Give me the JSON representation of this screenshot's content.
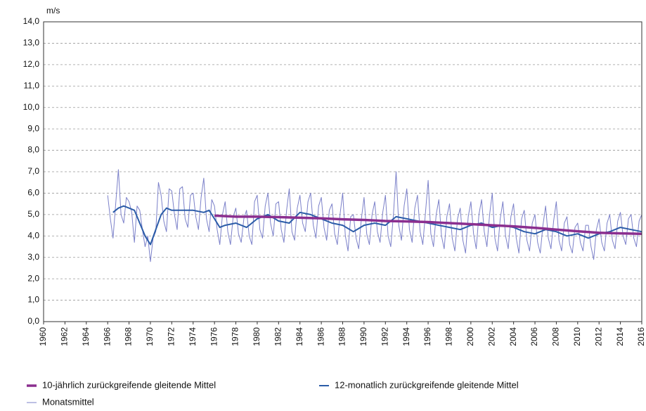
{
  "chart_data": {
    "type": "line",
    "y_unit": "m/s",
    "xlim": [
      1960,
      2016
    ],
    "xticks": [
      1960,
      1962,
      1964,
      1966,
      1968,
      1970,
      1972,
      1974,
      1976,
      1978,
      1980,
      1982,
      1984,
      1986,
      1988,
      1990,
      1992,
      1994,
      1996,
      1998,
      2000,
      2002,
      2004,
      2006,
      2008,
      2010,
      2012,
      2014,
      2016
    ],
    "ylim": [
      0,
      14
    ],
    "yticks": [
      {
        "value": 0,
        "label": "0,0"
      },
      {
        "value": 1,
        "label": "1,0"
      },
      {
        "value": 2,
        "label": "2,0"
      },
      {
        "value": 3,
        "label": "3,0"
      },
      {
        "value": 4,
        "label": "4,0"
      },
      {
        "value": 5,
        "label": "5,0"
      },
      {
        "value": 6,
        "label": "6,0"
      },
      {
        "value": 7,
        "label": "7,0"
      },
      {
        "value": 8,
        "label": "8,0"
      },
      {
        "value": 9,
        "label": "9,0"
      },
      {
        "value": 10,
        "label": "10,0"
      },
      {
        "value": 11,
        "label": "11,0"
      },
      {
        "value": 12,
        "label": "12,0"
      },
      {
        "value": 13,
        "label": "13,0"
      },
      {
        "value": 14,
        "label": "14,0"
      }
    ],
    "grid": true,
    "series": [
      {
        "name": "10-jährlich zurückgreifende gleitende Mittel",
        "color": "#8b2f8f",
        "width": 3.5,
        "x": [
          1976,
          1978,
          1980,
          1982,
          1984,
          1986,
          1988,
          1990,
          1992,
          1994,
          1996,
          1998,
          2000,
          2002,
          2004,
          2006,
          2008,
          2010,
          2012,
          2014,
          2016
        ],
        "values": [
          4.95,
          4.9,
          4.9,
          4.88,
          4.85,
          4.82,
          4.78,
          4.75,
          4.7,
          4.68,
          4.65,
          4.6,
          4.55,
          4.5,
          4.45,
          4.38,
          4.3,
          4.22,
          4.15,
          4.12,
          4.1
        ]
      },
      {
        "name": "12-monatlich zurückgreifende gleitende Mittel",
        "color": "#2b5ca8",
        "width": 2,
        "x": [
          1966.5,
          1967,
          1967.5,
          1968,
          1968.5,
          1969,
          1969.5,
          1970,
          1970.5,
          1971,
          1971.5,
          1972,
          1973,
          1974,
          1975,
          1975.5,
          1976,
          1976.5,
          1977,
          1978,
          1979,
          1980,
          1981,
          1982,
          1983,
          1984,
          1985,
          1986,
          1987,
          1988,
          1989,
          1990,
          1991,
          1992,
          1993,
          1994,
          1995,
          1996,
          1997,
          1998,
          1999,
          2000,
          2001,
          2002,
          2003,
          2004,
          2005,
          2006,
          2007,
          2008,
          2009,
          2010,
          2011,
          2012,
          2013,
          2014,
          2015,
          2016
        ],
        "values": [
          5.1,
          5.3,
          5.4,
          5.3,
          5.2,
          4.6,
          4.0,
          3.6,
          4.3,
          5.0,
          5.3,
          5.2,
          5.2,
          5.2,
          5.1,
          5.2,
          4.8,
          4.4,
          4.5,
          4.6,
          4.4,
          4.8,
          5.0,
          4.7,
          4.6,
          5.1,
          5.0,
          4.8,
          4.6,
          4.5,
          4.2,
          4.5,
          4.6,
          4.5,
          4.9,
          4.8,
          4.7,
          4.6,
          4.5,
          4.4,
          4.3,
          4.5,
          4.6,
          4.4,
          4.5,
          4.4,
          4.2,
          4.1,
          4.3,
          4.2,
          4.0,
          4.1,
          3.9,
          4.1,
          4.2,
          4.4,
          4.3,
          4.2
        ]
      },
      {
        "name": "Monatsmittel",
        "color": "#7b80c9",
        "width": 1,
        "x": [
          1966,
          1966.25,
          1966.5,
          1966.75,
          1967,
          1967.25,
          1967.5,
          1967.75,
          1968,
          1968.25,
          1968.5,
          1968.75,
          1969,
          1969.25,
          1969.5,
          1969.75,
          1970,
          1970.25,
          1970.5,
          1970.75,
          1971,
          1971.25,
          1971.5,
          1971.75,
          1972,
          1972.25,
          1972.5,
          1972.75,
          1973,
          1973.25,
          1973.5,
          1973.75,
          1974,
          1974.25,
          1974.5,
          1974.75,
          1975,
          1975.25,
          1975.5,
          1975.75,
          1976,
          1976.25,
          1976.5,
          1976.75,
          1977,
          1977.25,
          1977.5,
          1977.75,
          1978,
          1978.25,
          1978.5,
          1978.75,
          1979,
          1979.25,
          1979.5,
          1979.75,
          1980,
          1980.25,
          1980.5,
          1980.75,
          1981,
          1981.25,
          1981.5,
          1981.75,
          1982,
          1982.25,
          1982.5,
          1982.75,
          1983,
          1983.25,
          1983.5,
          1983.75,
          1984,
          1984.25,
          1984.5,
          1984.75,
          1985,
          1985.25,
          1985.5,
          1985.75,
          1986,
          1986.25,
          1986.5,
          1986.75,
          1987,
          1987.25,
          1987.5,
          1987.75,
          1988,
          1988.25,
          1988.5,
          1988.75,
          1989,
          1989.25,
          1989.5,
          1989.75,
          1990,
          1990.25,
          1990.5,
          1990.75,
          1991,
          1991.25,
          1991.5,
          1991.75,
          1992,
          1992.25,
          1992.5,
          1992.75,
          1993,
          1993.25,
          1993.5,
          1993.75,
          1994,
          1994.25,
          1994.5,
          1994.75,
          1995,
          1995.25,
          1995.5,
          1995.75,
          1996,
          1996.25,
          1996.5,
          1996.75,
          1997,
          1997.25,
          1997.5,
          1997.75,
          1998,
          1998.25,
          1998.5,
          1998.75,
          1999,
          1999.25,
          1999.5,
          1999.75,
          2000,
          2000.25,
          2000.5,
          2000.75,
          2001,
          2001.25,
          2001.5,
          2001.75,
          2002,
          2002.25,
          2002.5,
          2002.75,
          2003,
          2003.25,
          2003.5,
          2003.75,
          2004,
          2004.25,
          2004.5,
          2004.75,
          2005,
          2005.25,
          2005.5,
          2005.75,
          2006,
          2006.25,
          2006.5,
          2006.75,
          2007,
          2007.25,
          2007.5,
          2007.75,
          2008,
          2008.25,
          2008.5,
          2008.75,
          2009,
          2009.25,
          2009.5,
          2009.75,
          2010,
          2010.25,
          2010.5,
          2010.75,
          2011,
          2011.25,
          2011.5,
          2011.75,
          2012,
          2012.25,
          2012.5,
          2012.75,
          2013,
          2013.25,
          2013.5,
          2013.75,
          2014,
          2014.25,
          2014.5,
          2014.75,
          2015,
          2015.25,
          2015.5,
          2015.75,
          2016
        ],
        "values": [
          5.9,
          4.8,
          3.9,
          5.5,
          7.1,
          5.0,
          4.6,
          5.8,
          5.6,
          5.1,
          3.7,
          5.4,
          5.2,
          4.3,
          3.5,
          4.0,
          2.8,
          3.9,
          4.2,
          6.5,
          5.9,
          4.7,
          4.2,
          6.2,
          6.1,
          5.0,
          4.3,
          6.2,
          6.3,
          4.8,
          4.4,
          5.9,
          6.0,
          4.9,
          4.3,
          5.8,
          6.7,
          4.8,
          4.2,
          5.7,
          5.4,
          4.3,
          3.6,
          5.0,
          5.6,
          4.2,
          3.6,
          4.9,
          5.3,
          4.1,
          3.7,
          4.8,
          5.2,
          4.0,
          3.6,
          5.6,
          5.9,
          4.3,
          3.9,
          5.4,
          6.0,
          4.6,
          4.0,
          5.5,
          5.6,
          4.3,
          3.7,
          5.2,
          6.2,
          4.2,
          3.8,
          5.3,
          5.9,
          4.6,
          4.2,
          5.6,
          6.0,
          4.5,
          3.9,
          5.4,
          5.8,
          4.4,
          3.8,
          5.2,
          5.5,
          4.1,
          3.6,
          5.0,
          6.0,
          4.0,
          3.3,
          4.9,
          5.0,
          3.9,
          3.4,
          4.8,
          5.8,
          4.1,
          3.6,
          5.0,
          5.6,
          4.2,
          3.7,
          5.1,
          5.9,
          4.0,
          3.5,
          5.0,
          7.0,
          4.5,
          3.8,
          5.4,
          6.2,
          4.3,
          3.7,
          5.3,
          5.9,
          4.2,
          3.6,
          5.1,
          6.6,
          4.1,
          3.5,
          5.0,
          5.7,
          4.0,
          3.4,
          4.9,
          5.5,
          3.9,
          3.3,
          4.8,
          5.3,
          3.8,
          3.2,
          4.9,
          5.6,
          4.1,
          3.4,
          5.0,
          5.7,
          4.2,
          3.5,
          5.0,
          6.0,
          3.9,
          3.3,
          4.8,
          5.6,
          4.0,
          3.4,
          4.9,
          5.5,
          3.9,
          3.2,
          4.8,
          5.2,
          3.8,
          3.3,
          4.6,
          5.0,
          3.7,
          3.2,
          4.5,
          5.4,
          3.9,
          3.4,
          4.7,
          5.6,
          3.8,
          3.3,
          4.6,
          4.9,
          3.6,
          3.2,
          4.4,
          4.6,
          3.7,
          3.3,
          4.5,
          4.5,
          3.5,
          2.9,
          4.3,
          4.8,
          3.7,
          3.3,
          4.6,
          5.0,
          3.8,
          3.4,
          4.7,
          5.1,
          4.0,
          3.6,
          4.8,
          5.0,
          3.9,
          3.5,
          4.7,
          5.0
        ]
      }
    ]
  }
}
